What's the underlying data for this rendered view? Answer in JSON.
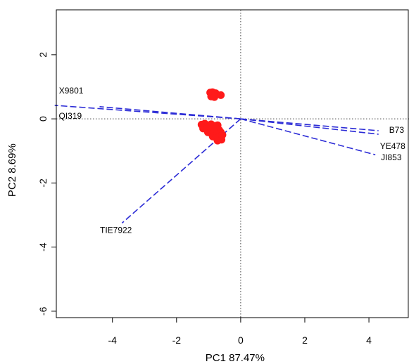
{
  "chart_data": {
    "type": "scatter",
    "title": "",
    "xlabel": "PC1 87.47%",
    "ylabel": "PC2 8.69%",
    "xlim": [
      -5.75,
      5.25
    ],
    "ylim": [
      -6.2,
      3.4
    ],
    "xticks": [
      -4,
      -2,
      0,
      2,
      4
    ],
    "yticks": [
      2,
      0,
      -2,
      -4,
      -6
    ],
    "grid": false,
    "reference_lines": {
      "x": 0,
      "y": 0,
      "style": "dotted"
    },
    "point_color": "#ff1a1a",
    "loading_color": "#2b2bd6",
    "points": [
      {
        "x": -0.95,
        "y": 0.82
      },
      {
        "x": -0.88,
        "y": 0.83
      },
      {
        "x": -0.78,
        "y": 0.8
      },
      {
        "x": -0.62,
        "y": 0.74
      },
      {
        "x": -0.92,
        "y": 0.7
      },
      {
        "x": -0.82,
        "y": 0.68
      },
      {
        "x": -1.22,
        "y": -0.18
      },
      {
        "x": -1.12,
        "y": -0.15
      },
      {
        "x": -1.02,
        "y": -0.2
      },
      {
        "x": -0.92,
        "y": -0.17
      },
      {
        "x": -0.82,
        "y": -0.22
      },
      {
        "x": -0.72,
        "y": -0.2
      },
      {
        "x": -1.17,
        "y": -0.3
      },
      {
        "x": -1.07,
        "y": -0.32
      },
      {
        "x": -0.97,
        "y": -0.28
      },
      {
        "x": -0.87,
        "y": -0.33
      },
      {
        "x": -0.77,
        "y": -0.3
      },
      {
        "x": -0.67,
        "y": -0.35
      },
      {
        "x": -1.02,
        "y": -0.42
      },
      {
        "x": -0.92,
        "y": -0.45
      },
      {
        "x": -0.82,
        "y": -0.4
      },
      {
        "x": -0.72,
        "y": -0.47
      },
      {
        "x": -0.62,
        "y": -0.42
      },
      {
        "x": -0.87,
        "y": -0.55
      },
      {
        "x": -0.77,
        "y": -0.58
      },
      {
        "x": -0.67,
        "y": -0.55
      },
      {
        "x": -0.72,
        "y": -0.68
      },
      {
        "x": -0.6,
        "y": -0.65
      },
      {
        "x": -0.97,
        "y": -0.24
      },
      {
        "x": -0.57,
        "y": -0.5
      }
    ],
    "loadings": [
      {
        "name": "X9801",
        "x": -5.8,
        "y": 0.42
      },
      {
        "name": "QI319",
        "x": -4.4,
        "y": 0.38
      },
      {
        "name": "B73",
        "x": 4.3,
        "y": -0.37
      },
      {
        "name": "YE478",
        "x": 4.3,
        "y": -0.48
      },
      {
        "name": "JI853",
        "x": 4.2,
        "y": -1.12
      },
      {
        "name": "TIE7922",
        "x": -3.7,
        "y": -3.25
      }
    ]
  }
}
